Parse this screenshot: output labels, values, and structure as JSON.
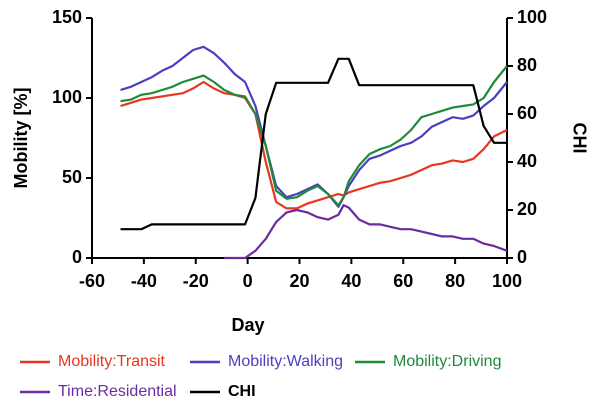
{
  "chart_data": {
    "type": "line",
    "xlabel": "Day",
    "ylabel": "Mobility [%]",
    "y2label": "CHI",
    "x": [
      -49,
      -45,
      -41,
      -37,
      -33,
      -29,
      -25,
      -21,
      -17,
      -13,
      -9,
      -5,
      -1,
      3,
      7,
      11,
      15,
      19,
      23,
      27,
      31,
      35,
      37,
      39,
      43,
      47,
      51,
      55,
      59,
      63,
      67,
      71,
      75,
      79,
      83,
      87,
      91,
      95,
      100
    ],
    "xlim": [
      -60,
      100
    ],
    "xticks": [
      -60,
      -40,
      -20,
      0,
      20,
      40,
      60,
      80,
      100
    ],
    "ylim": [
      0,
      150
    ],
    "yticks": [
      0,
      50,
      100,
      150
    ],
    "y2lim": [
      0,
      100
    ],
    "y2ticks": [
      0,
      20,
      40,
      60,
      80,
      100
    ],
    "series": [
      {
        "name": "Mobility:Transit",
        "color": "#e8351f",
        "values": [
          95,
          97,
          99,
          100,
          101,
          102,
          103,
          106,
          110,
          106,
          103,
          102,
          100,
          90,
          60,
          35,
          31,
          31,
          34,
          36,
          38,
          40,
          39,
          41,
          43,
          45,
          47,
          48,
          50,
          52,
          55,
          58,
          59,
          61,
          60,
          62,
          68,
          76,
          80
        ]
      },
      {
        "name": "Mobility:Walking",
        "color": "#4b3fc0",
        "values": [
          105,
          107,
          110,
          113,
          117,
          120,
          125,
          130,
          132,
          128,
          122,
          115,
          110,
          95,
          70,
          45,
          38,
          40,
          43,
          46,
          40,
          32,
          38,
          45,
          55,
          62,
          64,
          67,
          70,
          72,
          76,
          82,
          85,
          88,
          87,
          89,
          95,
          100,
          110
        ]
      },
      {
        "name": "Mobility:Driving",
        "color": "#1e8a3a",
        "values": [
          98,
          99,
          102,
          103,
          105,
          107,
          110,
          112,
          114,
          110,
          105,
          102,
          101,
          90,
          70,
          42,
          37,
          38,
          42,
          45,
          40,
          33,
          38,
          48,
          58,
          65,
          68,
          70,
          74,
          80,
          88,
          90,
          92,
          94,
          95,
          96,
          100,
          110,
          120
        ]
      },
      {
        "name": "Time:Residential",
        "color": "#6a2ca0",
        "axis": "y2",
        "values": [
          null,
          null,
          null,
          null,
          null,
          null,
          null,
          null,
          null,
          null,
          0,
          0,
          0,
          3,
          8,
          15,
          19,
          20,
          19,
          17,
          16,
          18,
          22,
          21,
          16,
          14,
          14,
          13,
          12,
          12,
          11,
          10,
          9,
          9,
          8,
          8,
          6,
          5,
          3
        ]
      },
      {
        "name": "CHI",
        "color": "#000000",
        "axis": "y2",
        "values": [
          12,
          12,
          12,
          14,
          14,
          14,
          14,
          14,
          14,
          14,
          14,
          14,
          14,
          25,
          60,
          73,
          73,
          73,
          73,
          73,
          73,
          83,
          83,
          83,
          72,
          72,
          72,
          72,
          72,
          72,
          72,
          72,
          72,
          72,
          72,
          72,
          55,
          48,
          48
        ]
      }
    ]
  }
}
